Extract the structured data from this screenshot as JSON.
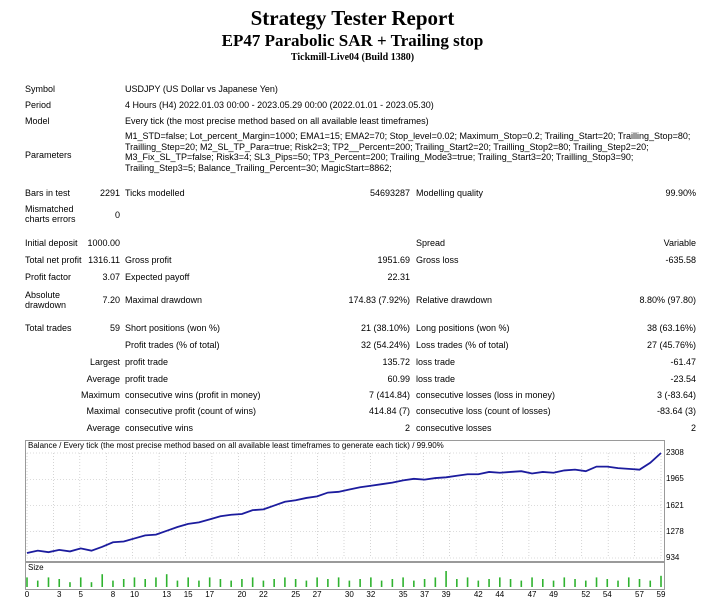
{
  "header": {
    "title": "Strategy Tester Report",
    "subtitle": "EP47 Parabolic SAR + Trailing stop",
    "server": "Tickmill-Live04 (Build 1380)"
  },
  "info": {
    "symbol_label": "Symbol",
    "symbol_value": "USDJPY (US Dollar vs Japanese Yen)",
    "period_label": "Period",
    "period_value": "4 Hours (H4) 2022.01.03 00:00 - 2023.05.29 00:00 (2022.01.01 - 2023.05.30)",
    "model_label": "Model",
    "model_value": "Every tick (the most precise method based on all available least timeframes)",
    "parameters_label": "Parameters",
    "parameters_value": "M1_STD=false; Lot_percent_Margin=1000; EMA1=15; EMA2=70; Stop_level=0.02; Maximum_Stop=0.2; Trailing_Start=20; Trailling_Stop=80; Trailling_Step=20; M2_SL_TP_Para=true; Risk2=3; TP2__Percent=200; Trailing_Start2=20; Trailling_Stop2=80; Trailing_Step2=20; M3_Fix_SL_TP=false; Risk3=4; SL3_Pips=50; TP3_Percent=200; Trailing_Mode3=true; Trailing_Start3=20; Trailling_Stop3=90; Trailing_Step3=5; Balance_Trailing_Percent=30; MagicStart=8862;"
  },
  "stats": {
    "bars_label": "Bars in test",
    "bars_value": "2291",
    "ticks_label": "Ticks modelled",
    "ticks_value": "54693287",
    "quality_label": "Modelling quality",
    "quality_value": "99.90%",
    "mismatch_label_1": "Mismatched",
    "mismatch_label_2": "charts errors",
    "mismatch_value": "0",
    "deposit_label": "Initial deposit",
    "deposit_value": "1000.00",
    "spread_label": "Spread",
    "spread_value": "Variable",
    "netprofit_label": "Total net profit",
    "netprofit_value": "1316.11",
    "grossprofit_label": "Gross profit",
    "grossprofit_value": "1951.69",
    "grossloss_label": "Gross loss",
    "grossloss_value": "-635.58",
    "pf_label": "Profit factor",
    "pf_value": "3.07",
    "payoff_label": "Expected payoff",
    "payoff_value": "22.31",
    "absdd_label_1": "Absolute",
    "absdd_label_2": "drawdown",
    "absdd_value": "7.20",
    "maxdd_label": "Maximal drawdown",
    "maxdd_value": "174.83 (7.92%)",
    "reldd_label": "Relative drawdown",
    "reldd_value": "8.80% (97.80)",
    "trades_label": "Total trades",
    "trades_value": "59",
    "short_label": "Short positions (won %)",
    "short_value": "21 (38.10%)",
    "long_label": "Long positions (won %)",
    "long_value": "38 (63.16%)",
    "ptrades_label": "Profit trades (% of total)",
    "ptrades_value": "32 (54.24%)",
    "ltrades_label": "Loss trades (% of total)",
    "ltrades_value": "27 (45.76%)",
    "largest_label": "Largest",
    "largest_profit_label": "profit trade",
    "largest_profit_value": "135.72",
    "largest_loss_label": "loss trade",
    "largest_loss_value": "-61.47",
    "average_label": "Average",
    "average_profit_label": "profit trade",
    "average_profit_value": "60.99",
    "average_loss_label": "loss trade",
    "average_loss_value": "-23.54",
    "maximum_label": "Maximum",
    "max_wins_label": "consecutive wins (profit in money)",
    "max_wins_value": "7 (414.84)",
    "max_losses_label": "consecutive losses (loss in money)",
    "max_losses_value": "3 (-83.64)",
    "maximal_label": "Maximal",
    "maximal_profit_label": "consecutive profit (count of wins)",
    "maximal_profit_value": "414.84 (7)",
    "maximal_loss_label": "consecutive loss (count of losses)",
    "maximal_loss_value": "-83.64 (3)",
    "avg2_label": "Average",
    "avg_wins_label": "consecutive wins",
    "avg_wins_value": "2",
    "avg_losses_label": "consecutive losses",
    "avg_losses_value": "2"
  },
  "colors": {
    "balance_line": "#1c1c9e",
    "size_bars": "#2fb32f",
    "grid": "#b8b8b8"
  },
  "chart_data": [
    {
      "type": "line",
      "title": "Balance / Every tick (the most precise method based on all available least timeframes to generate each tick) / 99.90%",
      "ylim": [
        934,
        2308
      ],
      "yticks": [
        "2308",
        "1965",
        "1621",
        "1278",
        "934"
      ],
      "x": [
        0,
        1,
        2,
        3,
        4,
        5,
        6,
        7,
        8,
        9,
        10,
        11,
        12,
        13,
        14,
        15,
        16,
        17,
        18,
        19,
        20,
        21,
        22,
        23,
        24,
        25,
        26,
        27,
        28,
        29,
        30,
        31,
        32,
        33,
        34,
        35,
        36,
        37,
        38,
        39,
        40,
        41,
        42,
        43,
        44,
        45,
        46,
        47,
        48,
        49,
        50,
        51,
        52,
        53,
        54,
        55,
        56,
        57,
        58,
        59
      ],
      "series": [
        {
          "values": [
            1000,
            1030,
            1010,
            1040,
            1020,
            1060,
            1030,
            1080,
            1140,
            1150,
            1190,
            1230,
            1240,
            1290,
            1340,
            1380,
            1400,
            1440,
            1480,
            1500,
            1510,
            1560,
            1570,
            1620,
            1670,
            1690,
            1720,
            1740,
            1790,
            1800,
            1830,
            1860,
            1880,
            1900,
            1920,
            1950,
            1970,
            1960,
            1980,
            1990,
            2010,
            2030,
            2030,
            2060,
            2050,
            2060,
            2070,
            2040,
            2060,
            2050,
            2080,
            2090,
            2070,
            2130,
            2130,
            2110,
            2100,
            2090,
            2180,
            2308
          ]
        }
      ],
      "grid": true
    },
    {
      "type": "bar",
      "title": "Size",
      "xticks": [
        "0",
        "3",
        "5",
        "8",
        "10",
        "13",
        "15",
        "17",
        "20",
        "22",
        "25",
        "27",
        "30",
        "32",
        "35",
        "37",
        "39",
        "42",
        "44",
        "47",
        "49",
        "52",
        "54",
        "57",
        "59"
      ],
      "values": [
        0.6,
        0.4,
        0.6,
        0.5,
        0.3,
        0.6,
        0.3,
        0.8,
        0.4,
        0.5,
        0.6,
        0.5,
        0.6,
        0.8,
        0.4,
        0.6,
        0.4,
        0.6,
        0.5,
        0.4,
        0.5,
        0.6,
        0.4,
        0.5,
        0.6,
        0.5,
        0.4,
        0.6,
        0.5,
        0.6,
        0.4,
        0.5,
        0.6,
        0.4,
        0.5,
        0.6,
        0.4,
        0.5,
        0.6,
        1.0,
        0.5,
        0.6,
        0.4,
        0.5,
        0.6,
        0.5,
        0.4,
        0.6,
        0.5,
        0.4,
        0.6,
        0.5,
        0.4,
        0.6,
        0.5,
        0.4,
        0.6,
        0.5,
        0.4,
        0.7
      ]
    }
  ]
}
